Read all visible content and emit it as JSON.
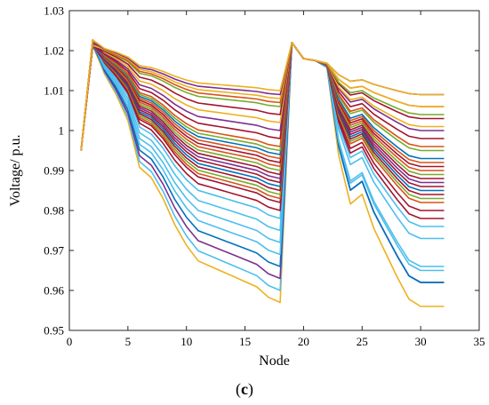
{
  "chart_data": {
    "type": "line",
    "title": "",
    "xlabel": "Node",
    "ylabel": "Voltage/ p.u.",
    "xlim": [
      0,
      35
    ],
    "ylim": [
      0.95,
      1.03
    ],
    "xticks": [
      0,
      5,
      10,
      15,
      20,
      25,
      30,
      35
    ],
    "xtick_labels": [
      "0",
      "5",
      "10",
      "15",
      "20",
      "25",
      "30",
      "35"
    ],
    "yticks": [
      0.95,
      0.96,
      0.97,
      0.98,
      0.99,
      1.0,
      1.01,
      1.02,
      1.03
    ],
    "ytick_labels": [
      "0.95",
      "0.96",
      "0.97",
      "0.98",
      "0.99",
      "1",
      "1.01",
      "1.02",
      "1.03"
    ],
    "grid": false,
    "legend": "none",
    "x": [
      1,
      2,
      3,
      4,
      5,
      6,
      7,
      8,
      9,
      10,
      11,
      12,
      13,
      14,
      15,
      16,
      17,
      18,
      19,
      20,
      21,
      22,
      23,
      24,
      25,
      26,
      27,
      28,
      29,
      30,
      31,
      32,
      33
    ],
    "series_shape": {
      "left_profile": [
        0,
        1.0,
        0.88,
        0.8,
        0.7,
        0.52,
        0.48,
        0.4,
        0.3,
        0.22,
        0.16,
        0.14,
        0.12,
        0.1,
        0.08,
        0.06,
        0.02,
        0.0
      ],
      "right_profile": [
        1.0,
        1.0,
        0.99,
        0.98,
        0.62,
        0.42,
        0.46,
        0.32,
        0.22,
        0.12,
        0.03,
        0.0,
        0.0,
        0.0
      ],
      "start_value": 0.995,
      "node2_value": 1.022,
      "node19_value": 1.022,
      "node20_value": 1.018
    },
    "series": [
      {
        "color": "#EDB120",
        "end_left": 0.957,
        "right_end": 0.956,
        "right_node22": 1.017
      },
      {
        "color": "#4DBEEE",
        "end_left": 0.96,
        "right_end": 0.962,
        "right_node22": 1.017
      },
      {
        "color": "#7E2F8E",
        "end_left": 0.963,
        "right_end": 0.962,
        "right_node22": 1.017
      },
      {
        "color": "#0072BD",
        "end_left": 0.966,
        "right_end": 0.962,
        "right_node22": 1.017
      },
      {
        "color": "#4DBEEE",
        "end_left": 0.969,
        "right_end": 0.965,
        "right_node22": 1.017
      },
      {
        "color": "#4DBEEE",
        "end_left": 0.972,
        "right_end": 0.966,
        "right_node22": 1.017
      },
      {
        "color": "#4DBEEE",
        "end_left": 0.975,
        "right_end": 0.973,
        "right_node22": 1.017
      },
      {
        "color": "#4DBEEE",
        "end_left": 0.978,
        "right_end": 0.976,
        "right_node22": 1.017
      },
      {
        "color": "#A2142F",
        "end_left": 0.98,
        "right_end": 0.978,
        "right_node22": 1.017
      },
      {
        "color": "#A2142F",
        "end_left": 0.982,
        "right_end": 0.98,
        "right_node22": 1.017
      },
      {
        "color": "#D95319",
        "end_left": 0.983,
        "right_end": 0.982,
        "right_node22": 1.017
      },
      {
        "color": "#77AC30",
        "end_left": 0.984,
        "right_end": 0.983,
        "right_node22": 1.017
      },
      {
        "color": "#A2142F",
        "end_left": 0.985,
        "right_end": 0.984,
        "right_node22": 1.017
      },
      {
        "color": "#0072BD",
        "end_left": 0.986,
        "right_end": 0.985,
        "right_node22": 1.017
      },
      {
        "color": "#A2142F",
        "end_left": 0.987,
        "right_end": 0.986,
        "right_node22": 1.017
      },
      {
        "color": "#7E2F8E",
        "end_left": 0.988,
        "right_end": 0.987,
        "right_node22": 1.017
      },
      {
        "color": "#A2142F",
        "end_left": 0.989,
        "right_end": 0.988,
        "right_node22": 1.017
      },
      {
        "color": "#77AC30",
        "end_left": 0.99,
        "right_end": 0.989,
        "right_node22": 1.017
      },
      {
        "color": "#D95319",
        "end_left": 0.991,
        "right_end": 0.99,
        "right_node22": 1.017
      },
      {
        "color": "#A2142F",
        "end_left": 0.992,
        "right_end": 0.991,
        "right_node22": 1.017
      },
      {
        "color": "#D95319",
        "end_left": 0.993,
        "right_end": 0.992,
        "right_node22": 1.017
      },
      {
        "color": "#0072BD",
        "end_left": 0.994,
        "right_end": 0.993,
        "right_node22": 1.017
      },
      {
        "color": "#77AC30",
        "end_left": 0.995,
        "right_end": 0.995,
        "right_node22": 1.017
      },
      {
        "color": "#D95319",
        "end_left": 0.996,
        "right_end": 0.996,
        "right_node22": 1.017
      },
      {
        "color": "#A2142F",
        "end_left": 0.998,
        "right_end": 0.998,
        "right_node22": 1.017
      },
      {
        "color": "#7E2F8E",
        "end_left": 1.0,
        "right_end": 1.0,
        "right_node22": 1.017
      },
      {
        "color": "#EDB120",
        "end_left": 1.002,
        "right_end": 1.001,
        "right_node22": 1.017
      },
      {
        "color": "#A2142F",
        "end_left": 1.004,
        "right_end": 1.003,
        "right_node22": 1.017
      },
      {
        "color": "#77AC30",
        "end_left": 1.006,
        "right_end": 1.004,
        "right_node22": 1.017
      },
      {
        "color": "#D95319",
        "end_left": 1.007,
        "right_end": 1.006,
        "right_node22": 1.017
      },
      {
        "color": "#EDB120",
        "end_left": 1.008,
        "right_end": 1.006,
        "right_node22": 1.017
      },
      {
        "color": "#7E2F8E",
        "end_left": 1.009,
        "right_end": 1.009,
        "right_node22": 1.017
      },
      {
        "color": "#EDB120",
        "end_left": 1.01,
        "right_end": 1.009,
        "right_node22": 1.017
      }
    ]
  },
  "caption": {
    "open": "(",
    "letter": "c",
    "close": ")"
  }
}
